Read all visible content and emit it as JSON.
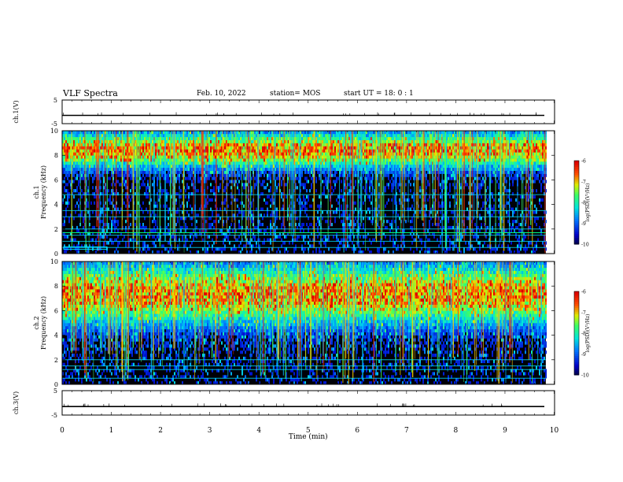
{
  "header": {
    "title": "VLF Spectra",
    "date": "Feb. 10, 2022",
    "station": "station= MOS",
    "start_ut": "start UT =   18: 0  : 1"
  },
  "chart_data": [
    {
      "type": "line",
      "panel": "ch1-waveform",
      "ylabel": "ch.1(V)",
      "ylim": [
        -5,
        5
      ],
      "yticks": [
        "5",
        "-5"
      ],
      "xlim": [
        0,
        10
      ],
      "series": [
        {
          "x": [
            0,
            9.8
          ],
          "values": [
            -1.5,
            -1.5
          ]
        }
      ]
    },
    {
      "type": "heatmap",
      "panel": "ch1-spectrogram",
      "ylabel": "ch.1 Frequency (kHz)",
      "ylim": [
        0,
        10
      ],
      "yticks": [
        "0",
        "2",
        "4",
        "6",
        "8",
        "10"
      ],
      "xlim": [
        0,
        9.83
      ],
      "colorbar": {
        "label": "log(PSD)(V²/Hz)",
        "range": [
          -10,
          -6
        ],
        "ticks": [
          "-6",
          "-7",
          "-8",
          "-9",
          "-10"
        ]
      },
      "description_bands": {
        "lines_khz": [
          0.5,
          1.0,
          1.5,
          2.0,
          3.0,
          3.5
        ]
      }
    },
    {
      "type": "heatmap",
      "panel": "ch2-spectrogram",
      "ylabel": "ch.2 Frequency (kHz)",
      "ylim": [
        0,
        10
      ],
      "yticks": [
        "0",
        "2",
        "4",
        "6",
        "8",
        "10"
      ],
      "xlim": [
        0,
        9.83
      ],
      "colorbar": {
        "label": "log(PSD)(V²/Hz)",
        "range": [
          -10,
          -6
        ],
        "ticks": [
          "-6",
          "-7",
          "-8",
          "-9",
          "-10"
        ]
      }
    },
    {
      "type": "line",
      "panel": "ch3-waveform",
      "ylabel": "ch.3(V)",
      "ylim": [
        -5,
        5
      ],
      "yticks": [
        "5",
        "-5"
      ],
      "xlim": [
        0,
        10
      ],
      "series": [
        {
          "x": [
            0,
            9.8
          ],
          "values": [
            -1.5,
            -1.5
          ]
        }
      ]
    }
  ],
  "xaxis": {
    "label": "Time (min)",
    "ticks": [
      "0",
      "1",
      "2",
      "3",
      "4",
      "5",
      "6",
      "7",
      "8",
      "9",
      "10"
    ]
  }
}
